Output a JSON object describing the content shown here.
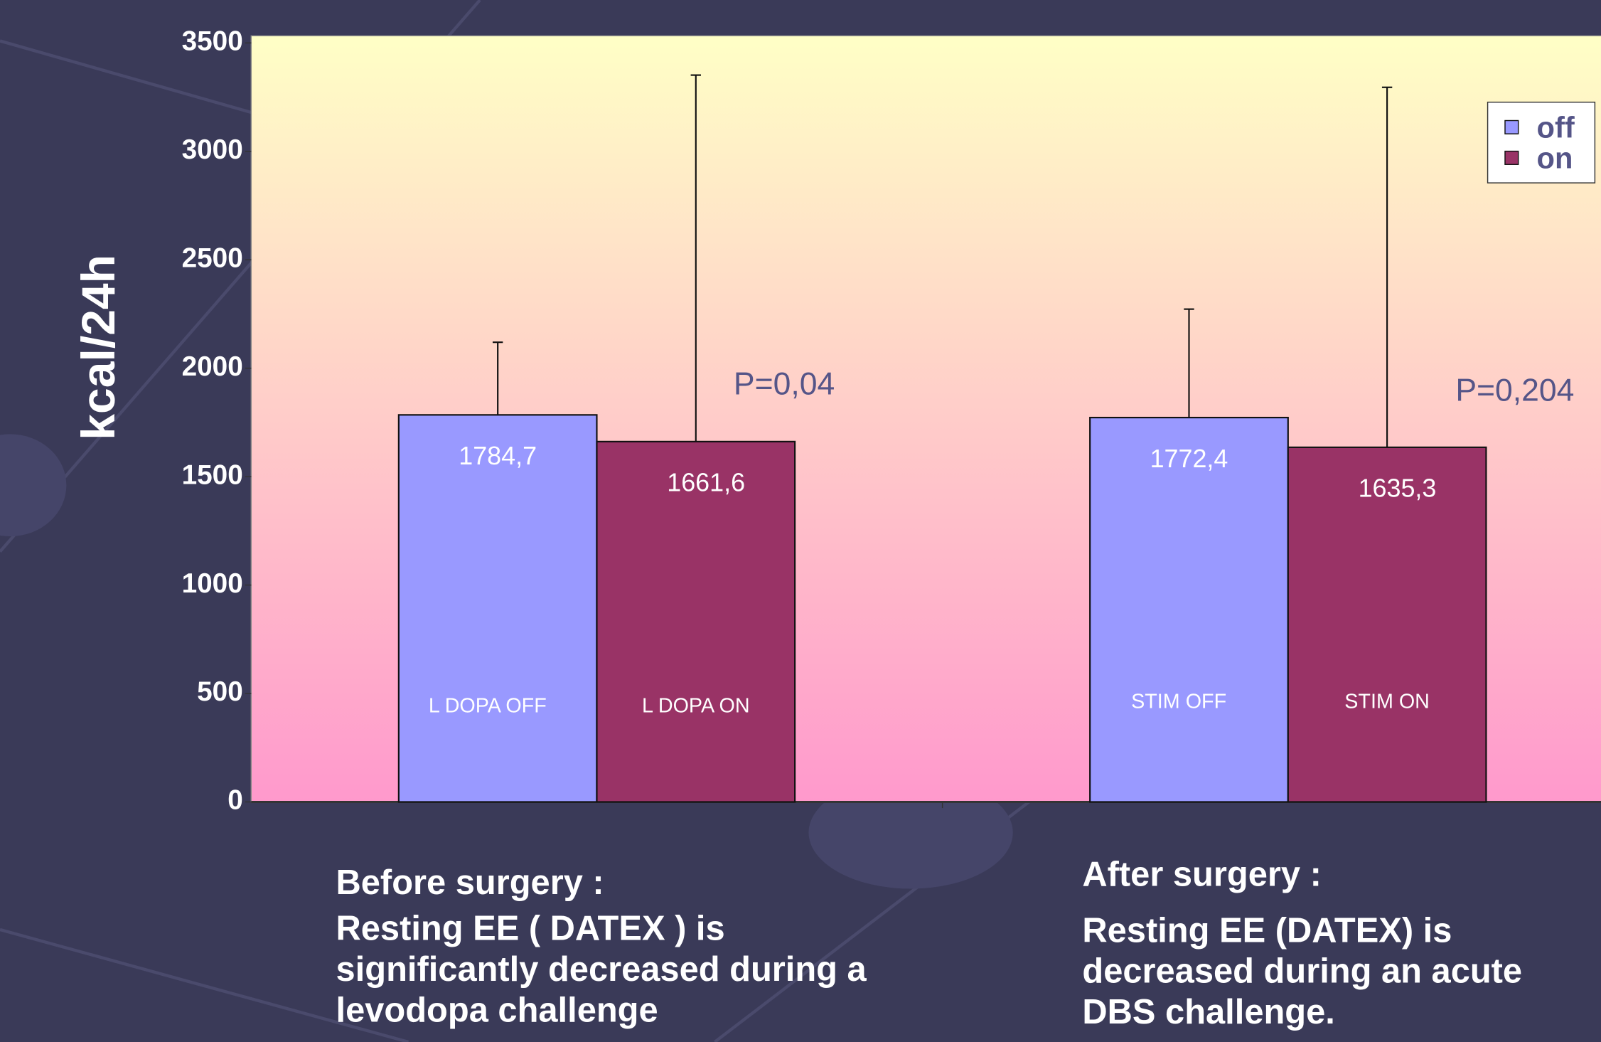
{
  "chart_data": {
    "type": "bar",
    "ylabel": "kcal/24h",
    "categories": [
      null,
      null
    ],
    "series": [
      {
        "name": "off",
        "color": "#9999ff",
        "values": [
          1784.7,
          1772.4
        ],
        "value_labels": [
          "1784,7",
          "1772,4"
        ],
        "errors": [
          335,
          500
        ],
        "bar_labels": [
          "L DOPA OFF",
          "STIM OFF"
        ]
      },
      {
        "name": "on",
        "color": "#993366",
        "values": [
          1661.6,
          1635.3
        ],
        "value_labels": [
          "1661,6",
          "1635,3"
        ],
        "errors": [
          1690,
          1660
        ],
        "bar_labels": [
          "L DOPA ON",
          "STIM  ON"
        ]
      }
    ],
    "ylim": [
      0,
      3500
    ],
    "yticks": [
      0,
      500,
      1000,
      1500,
      2000,
      2500,
      3000,
      3500
    ],
    "legend": "upper right",
    "annotations": [
      "P=0,04",
      "P=0,204"
    ],
    "group_notes": [
      [
        "Before surgery :",
        "Resting EE ( DATEX ) is",
        "significantly decreased during a",
        "levodopa challenge"
      ],
      [
        "After surgery :",
        "Resting EE (DATEX) is",
        "decreased during an acute",
        "DBS challenge."
      ]
    ]
  }
}
